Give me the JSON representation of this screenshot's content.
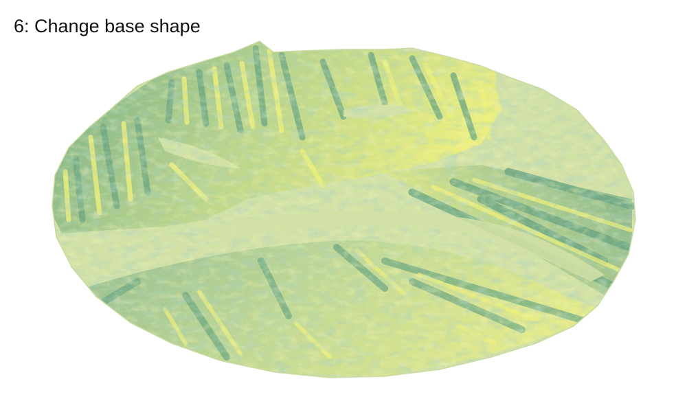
{
  "title": "6: Change base shape",
  "colors": {
    "background": "#ffffff",
    "flat": "#d2e1a6",
    "shadow": "#6aa583",
    "highlight": "#eff07a",
    "mid": "#b4d18a"
  }
}
